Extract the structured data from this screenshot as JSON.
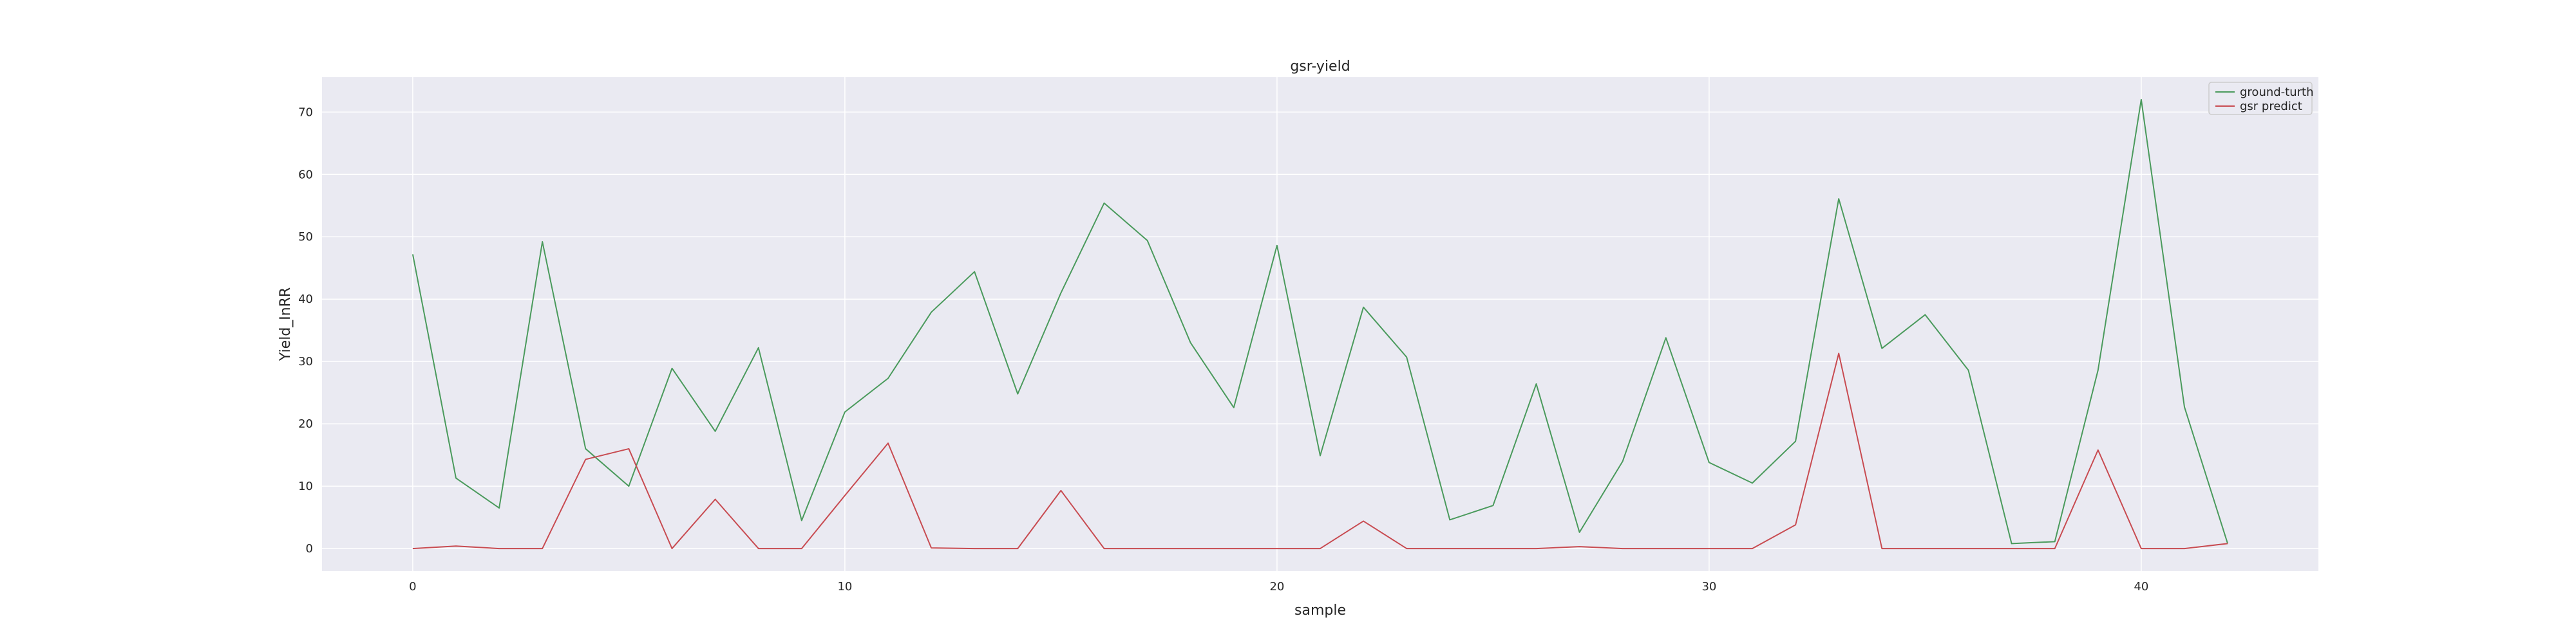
{
  "chart_data": {
    "type": "line",
    "title": "gsr-yield",
    "xlabel": "sample",
    "ylabel": "Yield_InRR",
    "xlim": [
      -2.1,
      44.1
    ],
    "ylim": [
      -3.6,
      75.6
    ],
    "xticks": [
      0,
      10,
      20,
      30,
      40
    ],
    "yticks": [
      0,
      10,
      20,
      30,
      40,
      50,
      60,
      70
    ],
    "grid": true,
    "legend_position": "top-right",
    "x": [
      0,
      1,
      2,
      3,
      4,
      5,
      6,
      7,
      8,
      9,
      10,
      11,
      12,
      13,
      14,
      15,
      16,
      17,
      18,
      19,
      20,
      21,
      22,
      23,
      24,
      25,
      26,
      27,
      28,
      29,
      30,
      31,
      32,
      33,
      34,
      35,
      36,
      37,
      38,
      39,
      40,
      41,
      42
    ],
    "series": [
      {
        "name": "ground-turth",
        "color": "#4a9a5c",
        "values": [
          47.2,
          11.3,
          6.5,
          49.2,
          16.0,
          10.0,
          28.9,
          18.8,
          32.2,
          4.5,
          21.9,
          27.3,
          37.9,
          44.4,
          24.8,
          41.0,
          55.4,
          49.4,
          33.0,
          22.6,
          48.6,
          14.9,
          38.7,
          30.7,
          4.6,
          6.9,
          26.4,
          2.6,
          14.0,
          33.8,
          13.8,
          10.5,
          17.2,
          56.1,
          32.1,
          37.5,
          28.6,
          0.8,
          1.1,
          28.6,
          72.0,
          22.7,
          0.8
        ]
      },
      {
        "name": "gsr predict",
        "color": "#c84b51",
        "values": [
          0.0,
          0.4,
          0.0,
          0.0,
          14.3,
          16.0,
          0.0,
          7.9,
          0.0,
          0.0,
          8.5,
          16.9,
          0.1,
          0.0,
          0.0,
          9.3,
          0.0,
          0.0,
          0.0,
          0.0,
          0.0,
          0.0,
          4.4,
          0.0,
          0.0,
          0.0,
          0.0,
          0.3,
          0.0,
          0.0,
          0.0,
          0.0,
          3.8,
          31.3,
          0.0,
          0.0,
          0.0,
          0.0,
          0.0,
          15.8,
          0.0,
          0.0,
          0.8
        ]
      }
    ]
  }
}
